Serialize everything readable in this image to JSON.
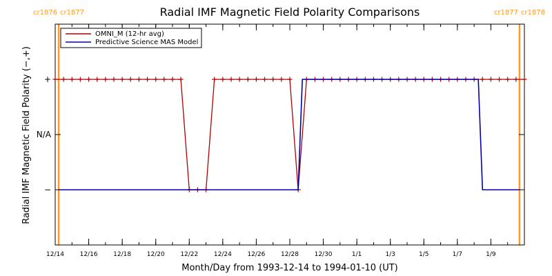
{
  "chart_data": {
    "type": "line",
    "title": "Radial IMF Magnetic Field Polarity Comparisons",
    "xlabel": "Month/Day from 1993-12-14 to 1994-01-10 (UT)",
    "ylabel": "Radial IMF Magnetic Field Polarity (−,+)",
    "x_range": [
      "1993-12-14T00:00",
      "1994-01-11T00:00"
    ],
    "x_ticks": [
      {
        "date": "1993-12-14",
        "label": "12/14"
      },
      {
        "date": "1993-12-16",
        "label": "12/16"
      },
      {
        "date": "1993-12-18",
        "label": "12/18"
      },
      {
        "date": "1993-12-20",
        "label": "12/20"
      },
      {
        "date": "1993-12-22",
        "label": "12/22"
      },
      {
        "date": "1993-12-24",
        "label": "12/24"
      },
      {
        "date": "1993-12-26",
        "label": "12/26"
      },
      {
        "date": "1993-12-28",
        "label": "12/28"
      },
      {
        "date": "1993-12-30",
        "label": "12/30"
      },
      {
        "date": "1994-01-01",
        "label": "1/1"
      },
      {
        "date": "1994-01-03",
        "label": "1/3"
      },
      {
        "date": "1994-01-05",
        "label": "1/5"
      },
      {
        "date": "1994-01-07",
        "label": "1/7"
      },
      {
        "date": "1994-01-09",
        "label": "1/9"
      }
    ],
    "y_ticks": [
      {
        "value": -1,
        "label": "−"
      },
      {
        "value": 0,
        "label": "N/A"
      },
      {
        "value": 1,
        "label": "+"
      }
    ],
    "ylim": [
      -2,
      2
    ],
    "grid": false,
    "legend_position": "top-left",
    "carrington_boundaries": [
      {
        "date": "1993-12-14T05:00",
        "left_label": "cr1876",
        "right_label": "cr1877",
        "color": "#ff9922"
      },
      {
        "date": "1994-01-10T17:00",
        "left_label": "cr1877",
        "right_label": "cr1878",
        "color": "#ff9922"
      }
    ],
    "series": [
      {
        "name": "OMNI_M (12-hr avg)",
        "color": "#aa0000",
        "marker": "plus",
        "points": [
          {
            "date": "1993-12-14T00:00",
            "value": 1
          },
          {
            "date": "1993-12-14T12:00",
            "value": 1
          },
          {
            "date": "1993-12-15T00:00",
            "value": 1
          },
          {
            "date": "1993-12-15T12:00",
            "value": 1
          },
          {
            "date": "1993-12-16T00:00",
            "value": 1
          },
          {
            "date": "1993-12-16T12:00",
            "value": 1
          },
          {
            "date": "1993-12-17T00:00",
            "value": 1
          },
          {
            "date": "1993-12-17T12:00",
            "value": 1
          },
          {
            "date": "1993-12-18T00:00",
            "value": 1
          },
          {
            "date": "1993-12-18T12:00",
            "value": 1
          },
          {
            "date": "1993-12-19T00:00",
            "value": 1
          },
          {
            "date": "1993-12-19T12:00",
            "value": 1
          },
          {
            "date": "1993-12-20T00:00",
            "value": 1
          },
          {
            "date": "1993-12-20T12:00",
            "value": 1
          },
          {
            "date": "1993-12-21T00:00",
            "value": 1
          },
          {
            "date": "1993-12-21T12:00",
            "value": 1
          },
          {
            "date": "1993-12-22T00:00",
            "value": -1
          },
          {
            "date": "1993-12-22T12:00",
            "value": -1
          },
          {
            "date": "1993-12-23T00:00",
            "value": -1
          },
          {
            "date": "1993-12-23T12:00",
            "value": 1
          },
          {
            "date": "1993-12-24T00:00",
            "value": 1
          },
          {
            "date": "1993-12-24T12:00",
            "value": 1
          },
          {
            "date": "1993-12-25T00:00",
            "value": 1
          },
          {
            "date": "1993-12-25T12:00",
            "value": 1
          },
          {
            "date": "1993-12-26T00:00",
            "value": 1
          },
          {
            "date": "1993-12-26T12:00",
            "value": 1
          },
          {
            "date": "1993-12-27T00:00",
            "value": 1
          },
          {
            "date": "1993-12-27T12:00",
            "value": 1
          },
          {
            "date": "1993-12-28T00:00",
            "value": 1
          },
          {
            "date": "1993-12-28T12:00",
            "value": -1
          },
          {
            "date": "1993-12-29T00:00",
            "value": 1
          },
          {
            "date": "1993-12-29T12:00",
            "value": 1
          },
          {
            "date": "1993-12-30T00:00",
            "value": 1
          },
          {
            "date": "1993-12-30T12:00",
            "value": 1
          },
          {
            "date": "1993-12-31T00:00",
            "value": 1
          },
          {
            "date": "1993-12-31T12:00",
            "value": 1
          },
          {
            "date": "1994-01-01T00:00",
            "value": 1
          },
          {
            "date": "1994-01-01T12:00",
            "value": 1
          },
          {
            "date": "1994-01-02T00:00",
            "value": 1
          },
          {
            "date": "1994-01-02T12:00",
            "value": 1
          },
          {
            "date": "1994-01-03T00:00",
            "value": 1
          },
          {
            "date": "1994-01-03T12:00",
            "value": 1
          },
          {
            "date": "1994-01-04T00:00",
            "value": 1
          },
          {
            "date": "1994-01-04T12:00",
            "value": 1
          },
          {
            "date": "1994-01-05T00:00",
            "value": 1
          },
          {
            "date": "1994-01-05T12:00",
            "value": 1
          },
          {
            "date": "1994-01-06T00:00",
            "value": 1
          },
          {
            "date": "1994-01-06T12:00",
            "value": 1
          },
          {
            "date": "1994-01-07T00:00",
            "value": 1
          },
          {
            "date": "1994-01-07T12:00",
            "value": 1
          },
          {
            "date": "1994-01-08T00:00",
            "value": 1
          },
          {
            "date": "1994-01-08T12:00",
            "value": 1
          },
          {
            "date": "1994-01-09T00:00",
            "value": 1
          },
          {
            "date": "1994-01-09T12:00",
            "value": 1
          },
          {
            "date": "1994-01-10T00:00",
            "value": 1
          },
          {
            "date": "1994-01-10T12:00",
            "value": 1
          },
          {
            "date": "1994-01-11T00:00",
            "value": 1
          }
        ]
      },
      {
        "name": "Predictive Science MAS Model",
        "color": "#0000aa",
        "marker": "none",
        "points": [
          {
            "date": "1993-12-14T05:00",
            "value": -1
          },
          {
            "date": "1993-12-28T12:00",
            "value": -1
          },
          {
            "date": "1993-12-28T18:00",
            "value": 1
          },
          {
            "date": "1994-01-08T06:00",
            "value": 1
          },
          {
            "date": "1994-01-08T12:00",
            "value": -1
          },
          {
            "date": "1994-01-10T17:00",
            "value": -1
          }
        ]
      }
    ]
  }
}
